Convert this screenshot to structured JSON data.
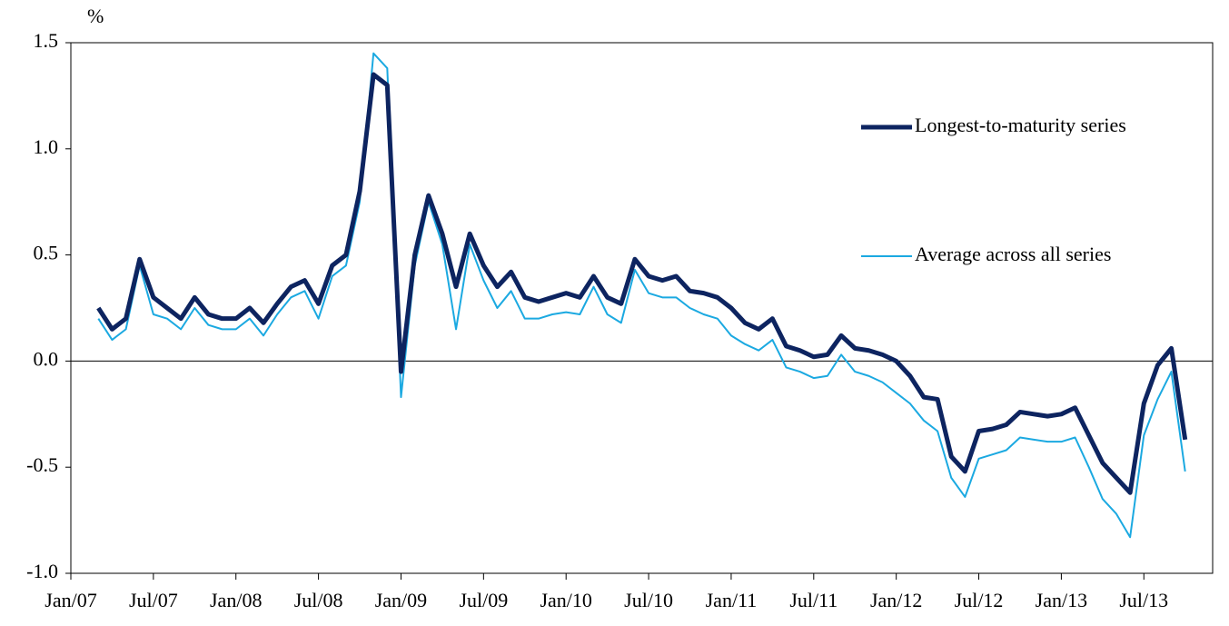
{
  "chart_data": {
    "type": "line",
    "y_label": "%",
    "x": [
      "2007-03",
      "2007-04",
      "2007-05",
      "2007-06",
      "2007-07",
      "2007-08",
      "2007-09",
      "2007-10",
      "2007-11",
      "2007-12",
      "2008-01",
      "2008-02",
      "2008-03",
      "2008-04",
      "2008-05",
      "2008-06",
      "2008-07",
      "2008-08",
      "2008-09",
      "2008-10",
      "2008-11",
      "2008-12",
      "2009-01",
      "2009-02",
      "2009-03",
      "2009-04",
      "2009-05",
      "2009-06",
      "2009-07",
      "2009-08",
      "2009-09",
      "2009-10",
      "2009-11",
      "2009-12",
      "2010-01",
      "2010-02",
      "2010-03",
      "2010-04",
      "2010-05",
      "2010-06",
      "2010-07",
      "2010-08",
      "2010-09",
      "2010-10",
      "2010-11",
      "2010-12",
      "2011-01",
      "2011-02",
      "2011-03",
      "2011-04",
      "2011-05",
      "2011-06",
      "2011-07",
      "2011-08",
      "2011-09",
      "2011-10",
      "2011-11",
      "2011-12",
      "2012-01",
      "2012-02",
      "2012-03",
      "2012-04",
      "2012-05",
      "2012-06",
      "2012-07",
      "2012-08",
      "2012-09",
      "2012-10",
      "2012-11",
      "2012-12",
      "2013-01",
      "2013-02",
      "2013-03",
      "2013-04",
      "2013-05",
      "2013-06",
      "2013-07",
      "2013-08",
      "2013-09",
      "2013-10"
    ],
    "series": [
      {
        "name": "Longest-to-maturity series",
        "color": "#0d2460",
        "width": 5,
        "values": [
          0.25,
          0.15,
          0.2,
          0.48,
          0.3,
          0.25,
          0.2,
          0.3,
          0.22,
          0.2,
          0.2,
          0.25,
          0.18,
          0.27,
          0.35,
          0.38,
          0.27,
          0.45,
          0.5,
          0.8,
          1.35,
          1.3,
          -0.05,
          0.5,
          0.78,
          0.6,
          0.35,
          0.6,
          0.45,
          0.35,
          0.42,
          0.3,
          0.28,
          0.3,
          0.32,
          0.3,
          0.4,
          0.3,
          0.27,
          0.48,
          0.4,
          0.38,
          0.4,
          0.33,
          0.32,
          0.3,
          0.25,
          0.18,
          0.15,
          0.2,
          0.07,
          0.05,
          0.02,
          0.03,
          0.12,
          0.06,
          0.05,
          0.03,
          0.0,
          -0.07,
          -0.17,
          -0.18,
          -0.45,
          -0.52,
          -0.33,
          -0.32,
          -0.3,
          -0.24,
          -0.25,
          -0.26,
          -0.25,
          -0.22,
          -0.35,
          -0.48,
          -0.55,
          -0.62,
          -0.2,
          -0.02,
          0.06,
          -0.37
        ]
      },
      {
        "name": "Average across all series",
        "color": "#1ba9e1",
        "width": 2,
        "values": [
          0.2,
          0.1,
          0.15,
          0.45,
          0.22,
          0.2,
          0.15,
          0.25,
          0.17,
          0.15,
          0.15,
          0.2,
          0.12,
          0.22,
          0.3,
          0.33,
          0.2,
          0.4,
          0.45,
          0.75,
          1.45,
          1.38,
          -0.17,
          0.45,
          0.75,
          0.55,
          0.15,
          0.55,
          0.38,
          0.25,
          0.33,
          0.2,
          0.2,
          0.22,
          0.23,
          0.22,
          0.35,
          0.22,
          0.18,
          0.43,
          0.32,
          0.3,
          0.3,
          0.25,
          0.22,
          0.2,
          0.12,
          0.08,
          0.05,
          0.1,
          -0.03,
          -0.05,
          -0.08,
          -0.07,
          0.03,
          -0.05,
          -0.07,
          -0.1,
          -0.15,
          -0.2,
          -0.28,
          -0.33,
          -0.55,
          -0.64,
          -0.46,
          -0.44,
          -0.42,
          -0.36,
          -0.37,
          -0.38,
          -0.38,
          -0.36,
          -0.5,
          -0.65,
          -0.72,
          -0.83,
          -0.35,
          -0.18,
          -0.05,
          -0.52
        ]
      }
    ],
    "xlim": [
      "2007-01",
      "2013-12"
    ],
    "xticks": [
      {
        "value": "2007-01",
        "label": "Jan/07"
      },
      {
        "value": "2007-07",
        "label": "Jul/07"
      },
      {
        "value": "2008-01",
        "label": "Jan/08"
      },
      {
        "value": "2008-07",
        "label": "Jul/08"
      },
      {
        "value": "2009-01",
        "label": "Jan/09"
      },
      {
        "value": "2009-07",
        "label": "Jul/09"
      },
      {
        "value": "2010-01",
        "label": "Jan/10"
      },
      {
        "value": "2010-07",
        "label": "Jul/10"
      },
      {
        "value": "2011-01",
        "label": "Jan/11"
      },
      {
        "value": "2011-07",
        "label": "Jul/11"
      },
      {
        "value": "2012-01",
        "label": "Jan/12"
      },
      {
        "value": "2012-07",
        "label": "Jul/12"
      },
      {
        "value": "2013-01",
        "label": "Jan/13"
      },
      {
        "value": "2013-07",
        "label": "Jul/13"
      }
    ],
    "ylim": [
      -1.0,
      1.5
    ],
    "yticks": [
      {
        "value": -1.0,
        "label": "-1.0"
      },
      -0.5,
      {
        "value": 0.0,
        "label": "0.0"
      },
      0.5,
      {
        "value": 1.0,
        "label": "1.0"
      },
      1.5
    ],
    "zero_line": true,
    "legend": "right"
  }
}
